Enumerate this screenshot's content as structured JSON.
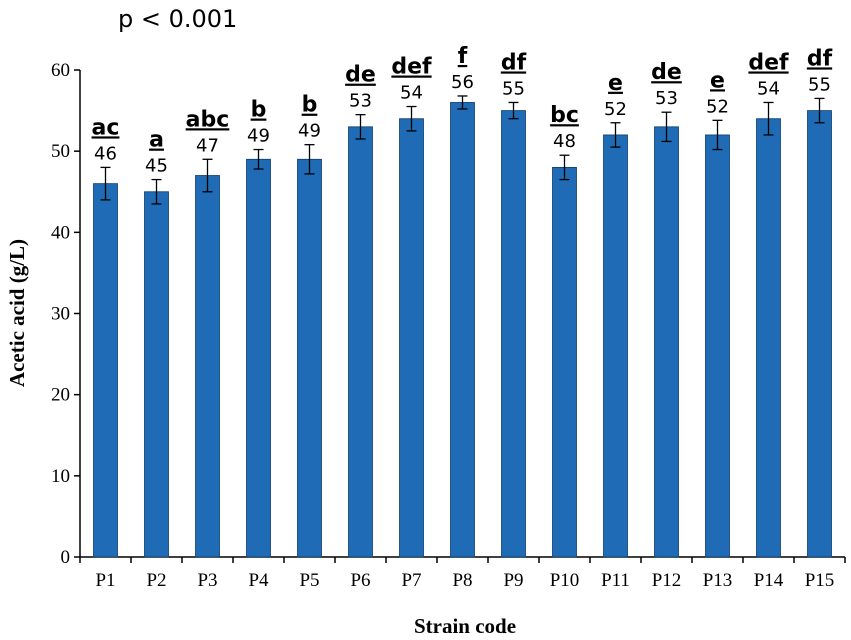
{
  "chart_data": {
    "type": "bar",
    "annotation": "p < 0.001",
    "xlabel": "Strain code",
    "ylabel": "Acetic acid (g/L)",
    "ylim": [
      0,
      60
    ],
    "yticks": [
      "0",
      "10",
      "20",
      "30",
      "40",
      "50",
      "60"
    ],
    "grid": false,
    "bar_color": "#1f6bb5",
    "categories": [
      "P1",
      "P2",
      "P3",
      "P4",
      "P5",
      "P6",
      "P7",
      "P8",
      "P9",
      "P10",
      "P11",
      "P12",
      "P13",
      "P14",
      "P15"
    ],
    "values": [
      46,
      45,
      47,
      49,
      49,
      53,
      54,
      56,
      55,
      48,
      52,
      53,
      52,
      54,
      55
    ],
    "value_labels": [
      "46",
      "45",
      "47",
      "49",
      "49",
      "53",
      "54",
      "56",
      "55",
      "48",
      "52",
      "53",
      "52",
      "54",
      "55"
    ],
    "errors": [
      2.0,
      1.5,
      2.0,
      1.2,
      1.8,
      1.5,
      1.5,
      0.8,
      1.0,
      1.5,
      1.5,
      1.8,
      1.8,
      2.0,
      1.5
    ],
    "significance_letters": [
      "ac",
      "a",
      "abc",
      "b",
      "b",
      "de",
      "def",
      "f",
      "df",
      "bc",
      "e",
      "de",
      "e",
      "def",
      "df"
    ]
  }
}
